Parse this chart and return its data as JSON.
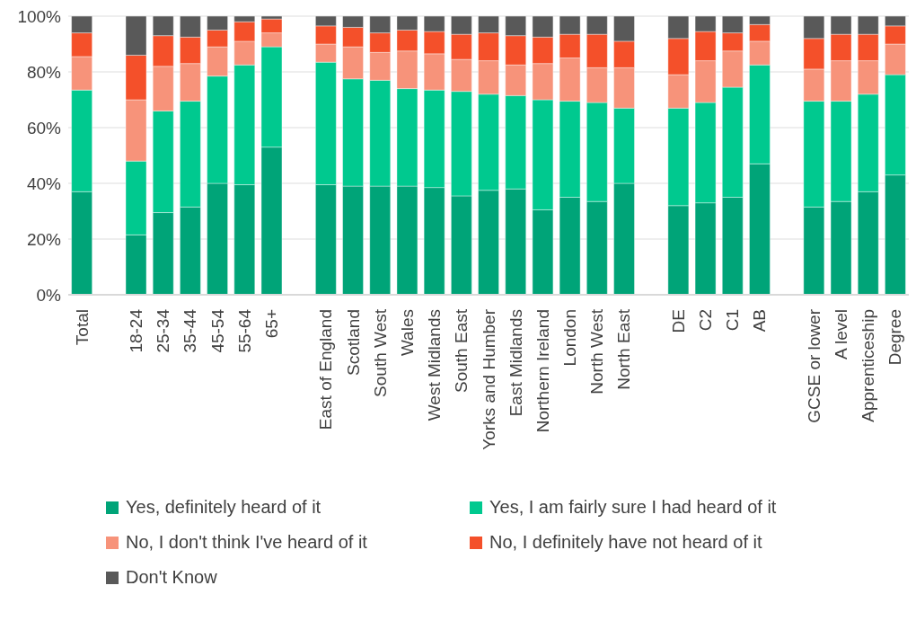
{
  "chart_data": {
    "type": "bar",
    "stacked": true,
    "categories": [
      "Total",
      null,
      "18-24",
      "25-34",
      "35-44",
      "45-54",
      "55-64",
      "65+",
      null,
      "East of England",
      "Scotland",
      "South West",
      "Wales",
      "West Midlands",
      "South East",
      "Yorks and Humber",
      "East Midlands",
      "Northern Ireland",
      "London",
      "North West",
      "North East",
      null,
      "DE",
      "C2",
      "C1",
      "AB",
      null,
      "GCSE or lower",
      "A level",
      "Apprenticeship",
      "Degree"
    ],
    "series": [
      {
        "name": "Yes, definitely heard of it",
        "color": "#00a478",
        "values": [
          37,
          null,
          21.5,
          29.5,
          31.5,
          40,
          39.5,
          53,
          null,
          39.5,
          39,
          39,
          39,
          38.5,
          35.5,
          37.5,
          38,
          30.5,
          35,
          33.5,
          40,
          null,
          32,
          33,
          35,
          47,
          null,
          31.5,
          33.5,
          37,
          43
        ]
      },
      {
        "name": "Yes, I am fairly sure I had heard of it",
        "color": "#00c98f",
        "values": [
          36.5,
          null,
          26.5,
          36.5,
          38,
          38.5,
          43,
          36,
          null,
          44,
          38.5,
          38,
          35,
          35,
          37.5,
          34.5,
          33.5,
          39.5,
          34.5,
          35.5,
          27,
          null,
          35,
          36,
          39.5,
          35.5,
          null,
          38,
          36,
          35,
          36
        ]
      },
      {
        "name": "No, I don't think I've heard of it",
        "color": "#f7937a",
        "values": [
          12,
          null,
          22,
          16,
          13.5,
          10.5,
          8.5,
          5,
          null,
          6.5,
          11.5,
          10,
          13.5,
          13,
          11.5,
          12,
          11,
          13,
          15.5,
          12.5,
          14.5,
          null,
          12,
          15,
          13,
          8.5,
          null,
          11.5,
          14.5,
          12,
          11
        ]
      },
      {
        "name": "No, I definitely have not heard of it",
        "color": "#f4502a",
        "values": [
          8.5,
          null,
          16,
          11,
          9.5,
          6,
          7,
          5,
          null,
          6.5,
          7,
          7,
          7.5,
          8,
          9,
          10,
          10.5,
          9.5,
          8.5,
          12,
          9.5,
          null,
          13,
          10.5,
          6.5,
          6,
          null,
          11,
          9.5,
          9.5,
          6.5
        ]
      },
      {
        "name": "Don't Know",
        "color": "#595959",
        "values": [
          6,
          null,
          14,
          7,
          7.5,
          5,
          2,
          1,
          null,
          3.5,
          4,
          6,
          5,
          5.5,
          6.5,
          6,
          7,
          7.5,
          6.5,
          6.5,
          9,
          null,
          8,
          5.5,
          6,
          3,
          null,
          8,
          6.5,
          6.5,
          3.5
        ]
      }
    ],
    "ylim": [
      0,
      100
    ],
    "yticks": [
      {
        "value": 0,
        "label": "0%"
      },
      {
        "value": 20,
        "label": "20%"
      },
      {
        "value": 40,
        "label": "40%"
      },
      {
        "value": 60,
        "label": "60%"
      },
      {
        "value": 80,
        "label": "80%"
      },
      {
        "value": 100,
        "label": "100%"
      }
    ],
    "grid": "y",
    "legend": "bottom"
  }
}
